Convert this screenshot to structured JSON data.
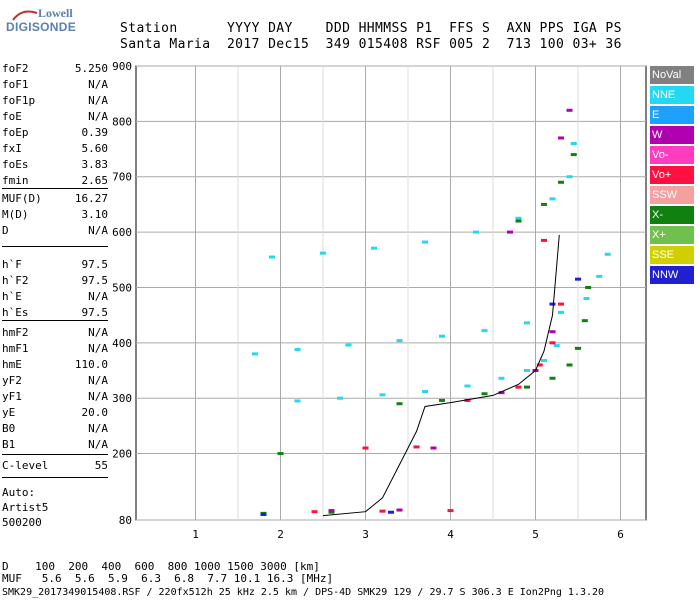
{
  "logo": {
    "line1": "Lowell",
    "line2": "DIGISONDE"
  },
  "header": {
    "row1": "Station      YYYY DAY    DDD HHMMSS P1  FFS S  AXN PPS IGA PS",
    "row2": "Santa Maria  2017 Dec15  349 015408 RSF 005 2  713 100 03+ 36"
  },
  "params_group1": [
    {
      "key": "foF2",
      "value": "5.250"
    },
    {
      "key": "foF1",
      "value": "N/A"
    },
    {
      "key": "foF1p",
      "value": "N/A"
    },
    {
      "key": "foE",
      "value": "N/A"
    },
    {
      "key": "foEp",
      "value": "0.39"
    },
    {
      "key": "fxI",
      "value": "5.60"
    },
    {
      "key": "foEs",
      "value": "3.83"
    },
    {
      "key": "fmin",
      "value": "2.65"
    }
  ],
  "params_group2": [
    {
      "key": "MUF(D)",
      "value": "16.27"
    },
    {
      "key": "M(D)",
      "value": "3.10"
    },
    {
      "key": "D",
      "value": "N/A"
    }
  ],
  "params_group3": [
    {
      "key": "h`F",
      "value": "97.5"
    },
    {
      "key": "h`F2",
      "value": "97.5"
    },
    {
      "key": "h`E",
      "value": "N/A"
    },
    {
      "key": "h`Es",
      "value": "97.5"
    }
  ],
  "params_group4": [
    {
      "key": "hmF2",
      "value": "N/A"
    },
    {
      "key": "hmF1",
      "value": "N/A"
    },
    {
      "key": "hmE",
      "value": "110.0"
    },
    {
      "key": "yF2",
      "value": "N/A"
    },
    {
      "key": "yF1",
      "value": "N/A"
    },
    {
      "key": "yE",
      "value": "20.0"
    },
    {
      "key": "B0",
      "value": "N/A"
    },
    {
      "key": "B1",
      "value": "N/A"
    }
  ],
  "clevel": {
    "key": "C-level",
    "value": "55"
  },
  "autoscaler": {
    "line1": "Auto:",
    "line2": "Artist5",
    "line3": "500200"
  },
  "footer": {
    "d_row": "D    100  200  400  600  800 1000 1500 3000 [km]",
    "muf_row": "MUF   5.6  5.6  5.9  6.3  6.8  7.7 10.1 16.3 [MHz]",
    "info_row": "SMK29_2017349015408.RSF / 220fx512h 25 kHz 2.5 km / DPS-4D SMK29 129 / 29.7 S 306.3 E Ion2Png 1.3.20"
  },
  "legend": [
    {
      "label": "NoVal",
      "color": "#808080"
    },
    {
      "label": "NNE",
      "color": "#24d8f2"
    },
    {
      "label": "E",
      "color": "#1ea0ff"
    },
    {
      "label": "W",
      "color": "#b000b0"
    },
    {
      "label": "Vo-",
      "color": "#ff3cc0"
    },
    {
      "label": "Vo+",
      "color": "#ff1040"
    },
    {
      "label": "SSW",
      "color": "#f4a0a0"
    },
    {
      "label": "X-",
      "color": "#108010"
    },
    {
      "label": "X+",
      "color": "#70c050"
    },
    {
      "label": "SSE",
      "color": "#d0d000"
    },
    {
      "label": "NNW",
      "color": "#2020d0"
    }
  ],
  "chart_data": {
    "type": "scatter",
    "x_ticks": [
      "1",
      "2",
      "3",
      "4",
      "5",
      "6"
    ],
    "y_ticks": [
      "80",
      "200",
      "300",
      "400",
      "500",
      "600",
      "700",
      "800",
      "900"
    ],
    "xlim": [
      0.3,
      6.3
    ],
    "ylim": [
      80,
      900
    ],
    "grid": true,
    "legend_position": "right",
    "series": [
      {
        "name": "NNE",
        "color": "#24d8f2",
        "points": [
          [
            1.7,
            380
          ],
          [
            2.2,
            388
          ],
          [
            2.8,
            396
          ],
          [
            3.4,
            404
          ],
          [
            3.9,
            412
          ],
          [
            4.4,
            422
          ],
          [
            4.9,
            436
          ],
          [
            5.3,
            455
          ],
          [
            5.6,
            480
          ],
          [
            5.75,
            520
          ],
          [
            5.85,
            560
          ],
          [
            2.2,
            295
          ],
          [
            2.7,
            300
          ],
          [
            3.2,
            306
          ],
          [
            3.7,
            312
          ],
          [
            4.2,
            322
          ],
          [
            4.6,
            336
          ],
          [
            4.9,
            350
          ],
          [
            5.1,
            368
          ],
          [
            5.25,
            395
          ],
          [
            1.9,
            555
          ],
          [
            2.5,
            562
          ],
          [
            3.1,
            571
          ],
          [
            3.7,
            582
          ],
          [
            4.3,
            600
          ],
          [
            4.8,
            625
          ],
          [
            5.2,
            660
          ],
          [
            5.4,
            700
          ],
          [
            5.45,
            760
          ]
        ]
      },
      {
        "name": "X-",
        "color": "#108010",
        "points": [
          [
            3.4,
            290
          ],
          [
            3.9,
            296
          ],
          [
            4.4,
            308
          ],
          [
            4.9,
            320
          ],
          [
            5.2,
            336
          ],
          [
            5.4,
            360
          ],
          [
            5.5,
            390
          ],
          [
            5.58,
            440
          ],
          [
            5.62,
            500
          ],
          [
            4.8,
            620
          ],
          [
            5.1,
            650
          ],
          [
            5.3,
            690
          ],
          [
            5.45,
            740
          ],
          [
            2.0,
            200
          ],
          [
            1.8,
            92
          ],
          [
            2.6,
            94
          ]
        ]
      },
      {
        "name": "Vo+",
        "color": "#ff1040",
        "points": [
          [
            2.4,
            95
          ],
          [
            3.2,
            96
          ],
          [
            4.0,
            97
          ],
          [
            3.0,
            210
          ],
          [
            3.6,
            212
          ],
          [
            4.2,
            296
          ],
          [
            4.8,
            320
          ],
          [
            5.05,
            360
          ],
          [
            5.2,
            400
          ],
          [
            5.3,
            470
          ],
          [
            5.1,
            585
          ]
        ]
      },
      {
        "name": "W",
        "color": "#b000b0",
        "points": [
          [
            2.6,
            97
          ],
          [
            3.4,
            98
          ],
          [
            3.8,
            210
          ],
          [
            4.6,
            310
          ],
          [
            5.0,
            350
          ],
          [
            5.2,
            420
          ],
          [
            4.7,
            600
          ],
          [
            5.3,
            770
          ],
          [
            5.4,
            820
          ]
        ]
      },
      {
        "name": "NNW",
        "color": "#2020d0",
        "points": [
          [
            5.2,
            470
          ],
          [
            5.5,
            515
          ],
          [
            1.8,
            90
          ],
          [
            3.3,
            94
          ]
        ]
      }
    ],
    "trace": {
      "name": "",
      "color": "#000",
      "points": [
        [
          2.5,
          88
        ],
        [
          3.0,
          95
        ],
        [
          3.2,
          120
        ],
        [
          3.4,
          180
        ],
        [
          3.6,
          240
        ],
        [
          3.7,
          285
        ],
        [
          4.0,
          292
        ],
        [
          4.5,
          305
        ],
        [
          4.8,
          325
        ],
        [
          5.0,
          350
        ],
        [
          5.1,
          385
        ],
        [
          5.2,
          450
        ],
        [
          5.28,
          595
        ]
      ]
    }
  }
}
